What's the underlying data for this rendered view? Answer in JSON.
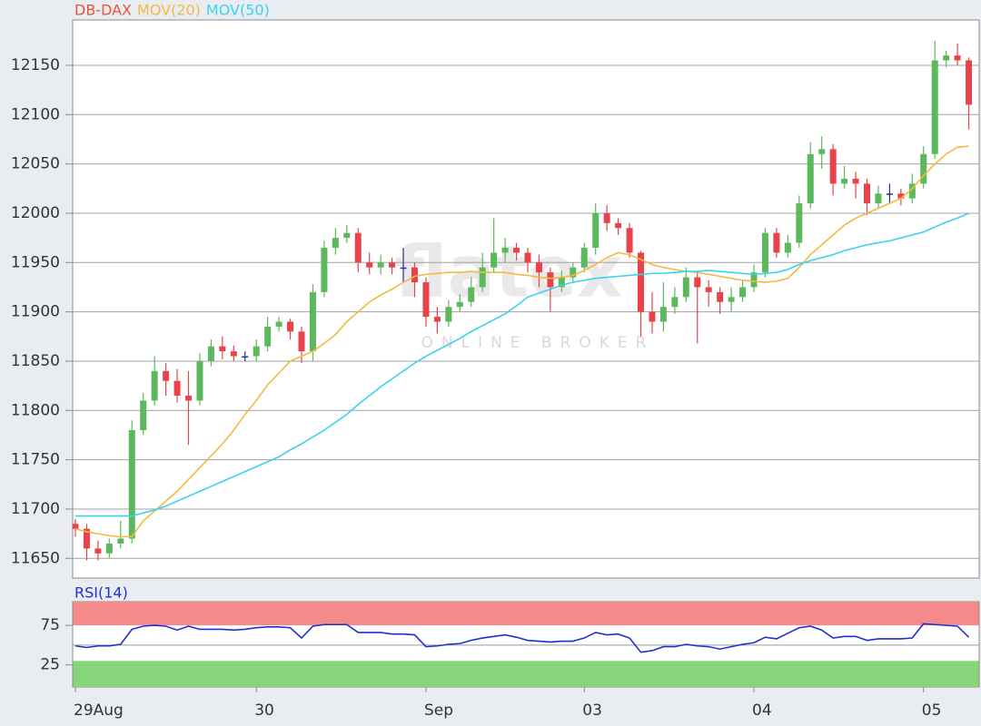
{
  "chart_data": [
    {
      "type": "candlestick",
      "watermark": "flatex",
      "watermark_subtitle": "ONLINE BROKER",
      "ylim": [
        11630,
        12196
      ],
      "yticks": [
        11650,
        11700,
        11750,
        11800,
        11850,
        11900,
        11950,
        12000,
        12050,
        12100,
        12150
      ],
      "grid": true,
      "series": [
        {
          "name": "DB-DAX",
          "color": "#e8543a",
          "up_color": "#5cb85c",
          "down_color": "#e8434b",
          "doji_color": "#2a2f9a",
          "open": [
            11685,
            11680,
            11660,
            11655,
            11665,
            11670,
            11780,
            11810,
            11840,
            11830,
            11815,
            11810,
            11850,
            11865,
            11860,
            11855,
            11855,
            11865,
            11885,
            11890,
            11880,
            11860,
            11920,
            11965,
            11975,
            11980,
            11950,
            11945,
            11950,
            11945,
            11945,
            11930,
            11895,
            11890,
            11905,
            11910,
            11925,
            11945,
            11960,
            11965,
            11960,
            11950,
            11940,
            11925,
            11935,
            11945,
            11965,
            12000,
            11990,
            11985,
            11960,
            11900,
            11890,
            11905,
            11915,
            11935,
            11925,
            11920,
            11910,
            11915,
            11925,
            11940,
            11980,
            11960,
            11970,
            12010,
            12060,
            12065,
            12030,
            12035,
            12030,
            12010,
            12020,
            12020,
            12015,
            12030,
            12060,
            12155,
            12160,
            12155
          ],
          "high": [
            11690,
            11685,
            11668,
            11670,
            11688,
            11790,
            11818,
            11855,
            11848,
            11842,
            11840,
            11858,
            11872,
            11875,
            11866,
            11860,
            11872,
            11895,
            11895,
            11893,
            11885,
            11928,
            11972,
            11985,
            11988,
            11985,
            11960,
            11958,
            11955,
            11965,
            11950,
            11935,
            11905,
            11912,
            11918,
            11935,
            11960,
            11995,
            11975,
            11970,
            11965,
            11958,
            11945,
            11942,
            11950,
            11970,
            12010,
            12008,
            11995,
            11990,
            11962,
            11920,
            11930,
            11925,
            11945,
            11940,
            11932,
            11925,
            11925,
            11932,
            11948,
            11985,
            11985,
            11978,
            12018,
            12072,
            12078,
            12070,
            12048,
            12042,
            12035,
            12028,
            12030,
            12025,
            12040,
            12068,
            12175,
            12165,
            12172,
            12158
          ],
          "low": [
            11672,
            11648,
            11648,
            11650,
            11660,
            11665,
            11775,
            11805,
            11815,
            11808,
            11765,
            11805,
            11845,
            11852,
            11850,
            11850,
            11850,
            11860,
            11880,
            11872,
            11848,
            11850,
            11915,
            11958,
            11970,
            11940,
            11938,
            11938,
            11938,
            11930,
            11915,
            11885,
            11878,
            11885,
            11900,
            11905,
            11920,
            11940,
            11950,
            11952,
            11940,
            11925,
            11900,
            11920,
            11930,
            11940,
            11958,
            11982,
            11978,
            11955,
            11875,
            11878,
            11880,
            11898,
            11910,
            11868,
            11905,
            11898,
            11900,
            11910,
            11920,
            11935,
            11955,
            11955,
            11965,
            12005,
            12045,
            12018,
            12025,
            12015,
            11998,
            12005,
            12010,
            12008,
            12010,
            12025,
            12055,
            12148,
            12150,
            12085
          ],
          "close": [
            11680,
            11660,
            11655,
            11665,
            11670,
            11780,
            11810,
            11840,
            11830,
            11815,
            11810,
            11850,
            11865,
            11860,
            11855,
            11855,
            11865,
            11885,
            11890,
            11880,
            11860,
            11920,
            11965,
            11975,
            11980,
            11950,
            11945,
            11950,
            11945,
            11945,
            11930,
            11895,
            11890,
            11905,
            11910,
            11925,
            11945,
            11960,
            11965,
            11960,
            11950,
            11940,
            11925,
            11935,
            11945,
            11965,
            12000,
            11990,
            11985,
            11960,
            11900,
            11890,
            11905,
            11915,
            11935,
            11925,
            11920,
            11910,
            11915,
            11925,
            11940,
            11980,
            11960,
            11970,
            12010,
            12060,
            12065,
            12030,
            12035,
            12030,
            12010,
            12020,
            12020,
            12015,
            12030,
            12060,
            12155,
            12160,
            12155,
            12110
          ]
        },
        {
          "name": "MOV(20)",
          "color": "#f5b942",
          "values": [
            11680,
            11677,
            11675,
            11673,
            11672,
            11672,
            11688,
            11698,
            11708,
            11718,
            11730,
            11742,
            11754,
            11766,
            11780,
            11796,
            11810,
            11826,
            11838,
            11850,
            11855,
            11860,
            11868,
            11877,
            11890,
            11900,
            11910,
            11917,
            11923,
            11930,
            11936,
            11938,
            11939,
            11940,
            11940,
            11941,
            11940,
            11940,
            11940,
            11938,
            11937,
            11935,
            11934,
            11935,
            11937,
            11942,
            11948,
            11955,
            11960,
            11958,
            11953,
            11948,
            11945,
            11943,
            11941,
            11940,
            11938,
            11936,
            11934,
            11932,
            11931,
            11930,
            11931,
            11934,
            11945,
            11958,
            11968,
            11978,
            11988,
            11995,
            12000,
            12005,
            12010,
            12015,
            12025,
            12038,
            12050,
            12060,
            12067,
            12068
          ]
        },
        {
          "name": "MOV(50)",
          "color": "#38d3ee",
          "values": [
            11693,
            11693,
            11693,
            11693,
            11693,
            11693,
            11696,
            11699,
            11703,
            11708,
            11713,
            11718,
            11723,
            11728,
            11733,
            11738,
            11743,
            11748,
            11753,
            11760,
            11766,
            11773,
            11780,
            11788,
            11796,
            11806,
            11815,
            11824,
            11832,
            11840,
            11848,
            11855,
            11861,
            11867,
            11873,
            11880,
            11886,
            11892,
            11898,
            11906,
            11915,
            11919,
            11923,
            11927,
            11930,
            11932,
            11934,
            11935,
            11936,
            11937,
            11938,
            11939,
            11939,
            11940,
            11941,
            11941,
            11942,
            11941,
            11940,
            11939,
            11938,
            11939,
            11940,
            11943,
            11948,
            11952,
            11955,
            11958,
            11962,
            11965,
            11968,
            11970,
            11972,
            11975,
            11978,
            11981,
            11986,
            11991,
            11995,
            12000
          ]
        }
      ]
    },
    {
      "type": "line",
      "ylim": [
        -3,
        105
      ],
      "yticks": [
        25,
        75
      ],
      "midline": 50,
      "overbought": 75,
      "oversold": 30,
      "band_colors": [
        "#f58a8a",
        "#86d57a"
      ],
      "categories": [
        "29Aug",
        null,
        null,
        null,
        null,
        null,
        null,
        null,
        null,
        null,
        null,
        null,
        null,
        null,
        null,
        null,
        "30",
        null,
        null,
        null,
        null,
        null,
        null,
        null,
        null,
        null,
        null,
        null,
        null,
        null,
        null,
        "Sep",
        null,
        null,
        null,
        null,
        null,
        null,
        null,
        null,
        null,
        null,
        null,
        null,
        null,
        "03",
        null,
        null,
        null,
        null,
        null,
        null,
        null,
        null,
        null,
        null,
        null,
        null,
        null,
        null,
        "04",
        null,
        null,
        null,
        null,
        null,
        null,
        null,
        null,
        null,
        null,
        null,
        null,
        null,
        null,
        "05",
        null,
        null,
        null,
        null
      ],
      "series": [
        {
          "name": "RSI(14)",
          "color": "#1f2fd0",
          "values": [
            49,
            47,
            49,
            49,
            51,
            70,
            74,
            75,
            74,
            69,
            74,
            70,
            70,
            70,
            69,
            70,
            72,
            73,
            73,
            72,
            59,
            74,
            76,
            76,
            76,
            66,
            66,
            66,
            64,
            64,
            63,
            48,
            49,
            51,
            52,
            56,
            59,
            61,
            63,
            60,
            56,
            55,
            54,
            55,
            55,
            59,
            66,
            63,
            64,
            59,
            41,
            43,
            48,
            48,
            51,
            49,
            48,
            45,
            48,
            51,
            53,
            60,
            58,
            65,
            72,
            74,
            69,
            59,
            61,
            61,
            56,
            58,
            58,
            58,
            59,
            77,
            76,
            75,
            74,
            60
          ]
        }
      ]
    }
  ]
}
